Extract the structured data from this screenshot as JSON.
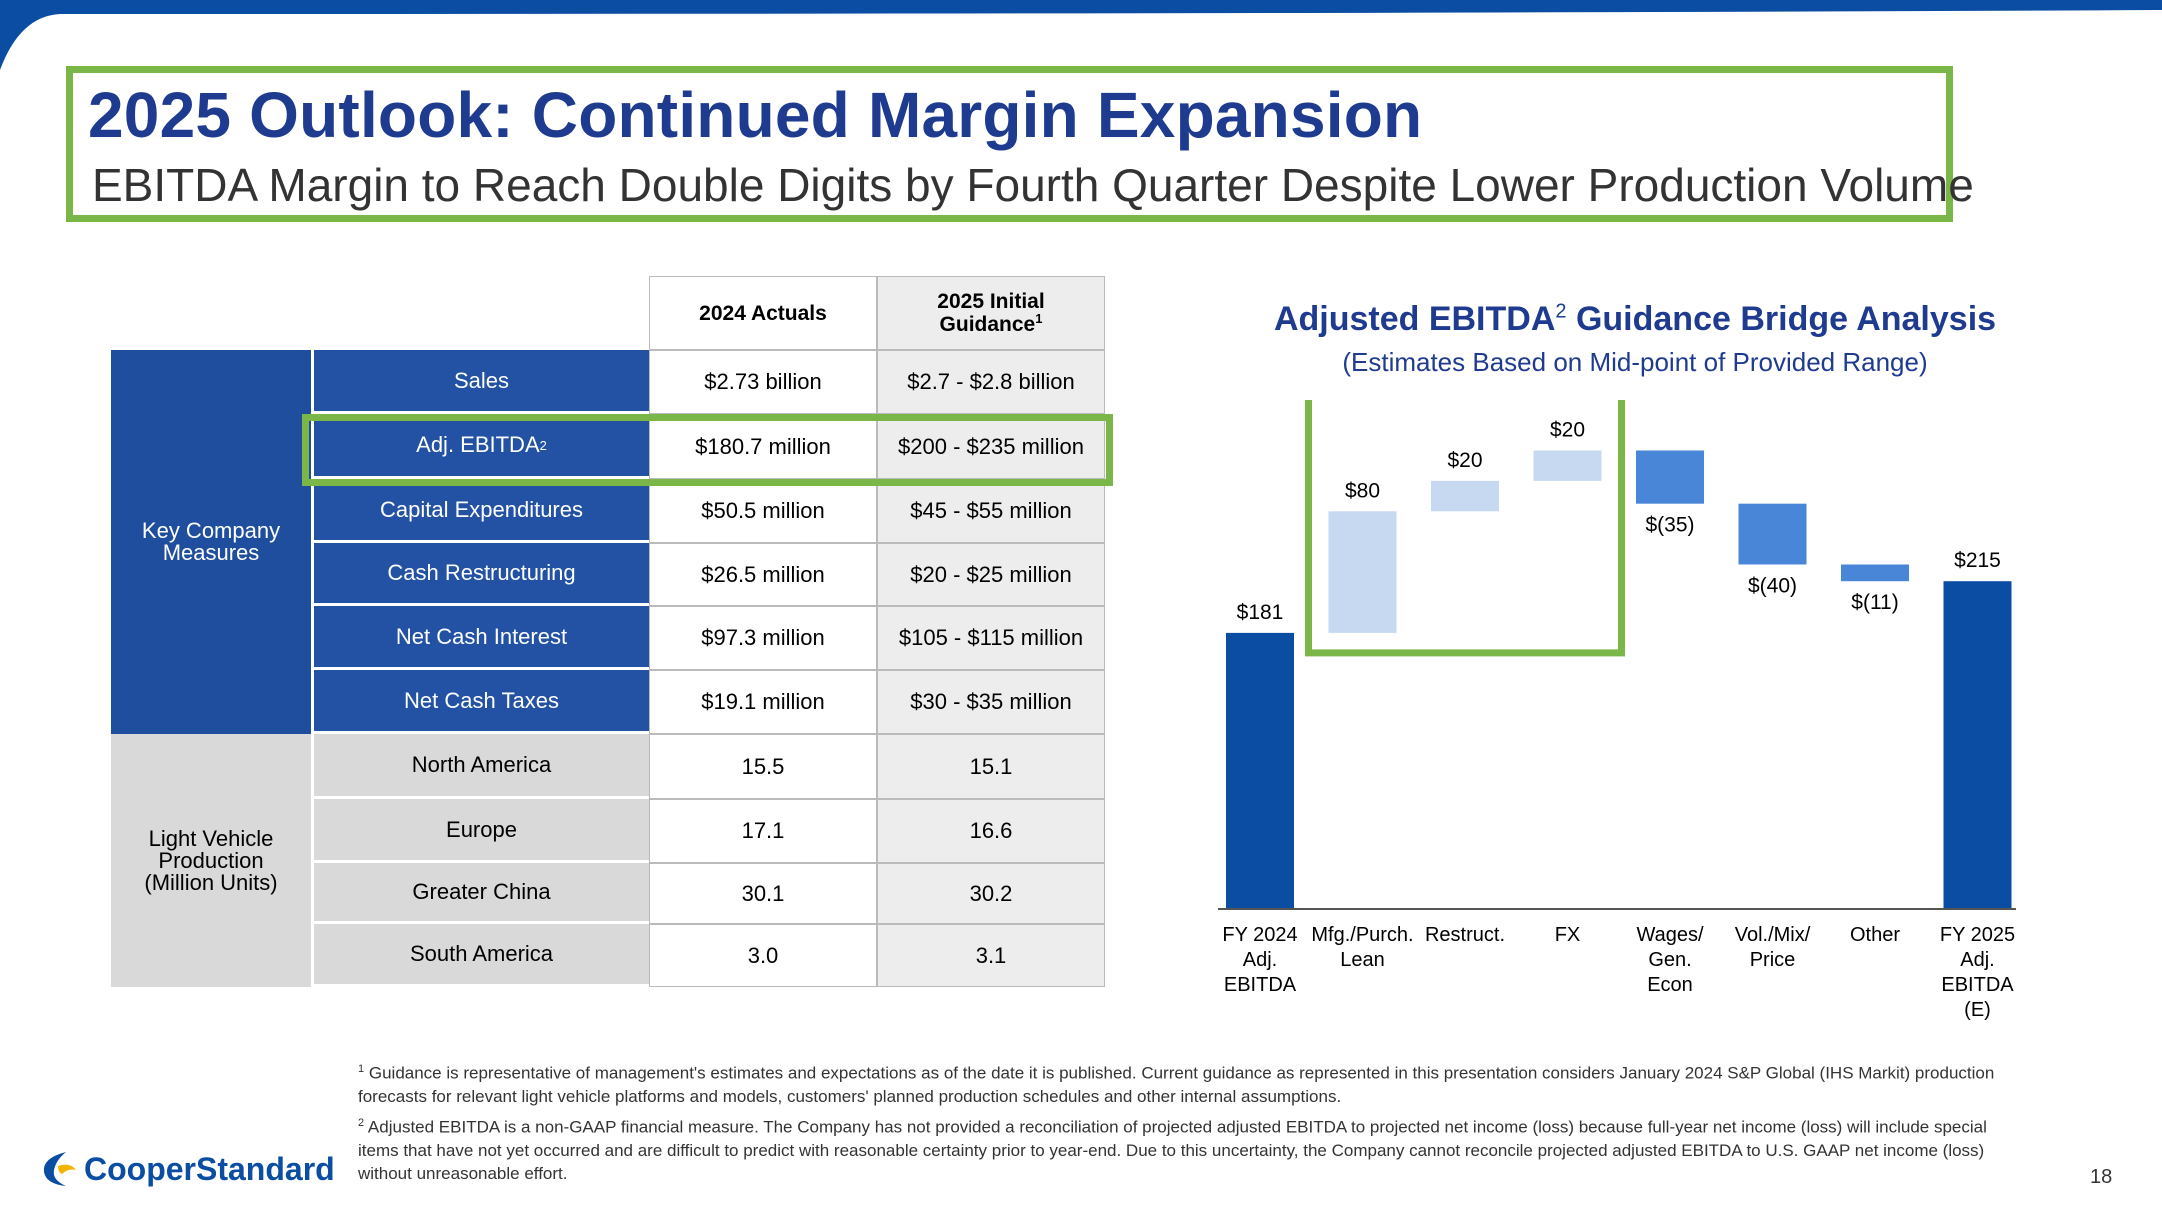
{
  "header": {
    "title": "2025 Outlook: Continued Margin Expansion",
    "subtitle": "EBITDA Margin to Reach Double Digits by Fourth Quarter Despite Lower Production Volume"
  },
  "table": {
    "col_2024": "2024 Actuals",
    "col_2025_line1": "2025 Initial",
    "col_2025_line2": "Guidance",
    "col_2025_sup": "1",
    "group_company_line1": "Key Company",
    "group_company_line2": "Measures",
    "group_lvp_line1": "Light Vehicle",
    "group_lvp_line2": "Production",
    "group_lvp_line3": "(Million Units)",
    "rows": [
      {
        "label": "Sales",
        "sup": "",
        "actual": "$2.73 billion",
        "guidance": "$2.7 - $2.8 billion"
      },
      {
        "label": "Adj. EBITDA",
        "sup": "2",
        "actual": "$180.7 million",
        "guidance": "$200 - $235 million"
      },
      {
        "label": "Capital Expenditures",
        "sup": "",
        "actual": "$50.5 million",
        "guidance": "$45 - $55 million"
      },
      {
        "label": "Cash Restructuring",
        "sup": "",
        "actual": "$26.5 million",
        "guidance": "$20 - $25 million"
      },
      {
        "label": "Net Cash Interest",
        "sup": "",
        "actual": "$97.3 million",
        "guidance": "$105 - $115 million"
      },
      {
        "label": "Net Cash Taxes",
        "sup": "",
        "actual": "$19.1 million",
        "guidance": "$30 - $35 million"
      },
      {
        "label": "North America",
        "sup": "",
        "actual": "15.5",
        "guidance": "15.1"
      },
      {
        "label": "Europe",
        "sup": "",
        "actual": "17.1",
        "guidance": "16.6"
      },
      {
        "label": "Greater China",
        "sup": "",
        "actual": "30.1",
        "guidance": "30.2"
      },
      {
        "label": "South America",
        "sup": "",
        "actual": "3.0",
        "guidance": "3.1"
      }
    ]
  },
  "chart_heading": {
    "title": "Adjusted EBITDA",
    "title_sup": "2",
    "title_rest": " Guidance Bridge Analysis",
    "subtitle": "(Estimates Based on Mid-point of Provided Range)"
  },
  "chart_data": {
    "type": "waterfall",
    "categories": [
      [
        "FY 2024",
        "Adj.",
        "EBITDA"
      ],
      [
        "Mfg./Purch.",
        "Lean"
      ],
      [
        "Restruct."
      ],
      [
        "FX"
      ],
      [
        "Wages/",
        "Gen.",
        "Econ"
      ],
      [
        "Vol./Mix/",
        "Price"
      ],
      [
        "Other"
      ],
      [
        "FY 2025",
        "Adj.",
        "EBITDA",
        "(E)"
      ]
    ],
    "values": [
      181,
      80,
      20,
      20,
      -35,
      -40,
      -11,
      215
    ],
    "kinds": [
      "total",
      "delta",
      "delta",
      "delta",
      "delta",
      "delta",
      "delta",
      "total"
    ],
    "labels": [
      "$181",
      "$80",
      "$20",
      "$20",
      "$(35)",
      "$(40)",
      "$(11)",
      "$215"
    ],
    "highlighted": [
      1,
      2,
      3
    ],
    "colors": {
      "total": "#0b4da2",
      "increase": "#c6d9f1",
      "decrease": "#4a86d8",
      "highlight": "#7ab648"
    }
  },
  "footnotes": {
    "fn1_sup": "1",
    "fn1": "Guidance is representative of management's estimates and expectations as of the date it is published. Current guidance as represented in this presentation considers January 2024 S&P Global (IHS Markit) production forecasts for relevant light vehicle platforms and models, customers' planned production schedules and other internal assumptions.",
    "fn2_sup": "2",
    "fn2": "Adjusted EBITDA is a non-GAAP financial measure. The Company has not provided a reconciliation of projected adjusted EBITDA to projected net income (loss) because full-year net income (loss) will include special items that have not yet occurred and are difficult to predict with reasonable certainty prior to year-end. Due to this uncertainty, the Company cannot reconcile projected adjusted EBITDA to U.S. GAAP net income (loss) without unreasonable effort."
  },
  "footer": {
    "logo_text": "CooperStandard",
    "page_number": "18"
  }
}
